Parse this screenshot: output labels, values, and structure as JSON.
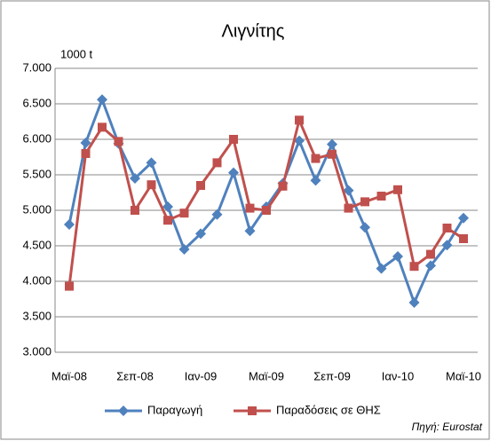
{
  "chart_data": {
    "type": "line",
    "title": "Λιγνίτης",
    "y_label": "1000 t",
    "source": "Πηγή: Eurostat",
    "categories": [
      "Μαϊ-08",
      null,
      null,
      null,
      "Σεπ-08",
      null,
      null,
      null,
      "Ιαν-09",
      null,
      null,
      null,
      "Μαϊ-09",
      null,
      null,
      null,
      "Σεπ-09",
      null,
      null,
      null,
      "Ιαν-10",
      null,
      null,
      null,
      "Μαϊ-10"
    ],
    "series": [
      {
        "name": "Παραγωγή",
        "color": "#4f81bd",
        "marker": "diamond",
        "values": [
          4800,
          5950,
          6560,
          5940,
          5450,
          5670,
          5050,
          4450,
          4670,
          4940,
          5530,
          4710,
          5050,
          5380,
          5980,
          5420,
          5930,
          5280,
          4760,
          4180,
          4350,
          3700,
          4220,
          4510,
          4890
        ]
      },
      {
        "name": "Παραδόσεις σε ΘΗΣ",
        "color": "#c0504d",
        "marker": "square",
        "values": [
          3930,
          5800,
          6170,
          5970,
          5000,
          5360,
          4860,
          4960,
          5350,
          5670,
          6000,
          5030,
          5000,
          5340,
          6270,
          5730,
          5790,
          5030,
          5120,
          5200,
          5290,
          4210,
          4380,
          4750,
          4600
        ]
      }
    ],
    "ylim": [
      3000,
      7000
    ],
    "yticks": [
      {
        "value": 3000,
        "label": "3.000"
      },
      {
        "value": 3500,
        "label": "3.500"
      },
      {
        "value": 4000,
        "label": "4.000"
      },
      {
        "value": 4500,
        "label": "4.500"
      },
      {
        "value": 5000,
        "label": "5.000"
      },
      {
        "value": 5500,
        "label": "5.500"
      },
      {
        "value": 6000,
        "label": "6.000"
      },
      {
        "value": 6500,
        "label": "6.500"
      },
      {
        "value": 7000,
        "label": "7.000"
      }
    ],
    "grid": true,
    "legend": "bottom"
  }
}
